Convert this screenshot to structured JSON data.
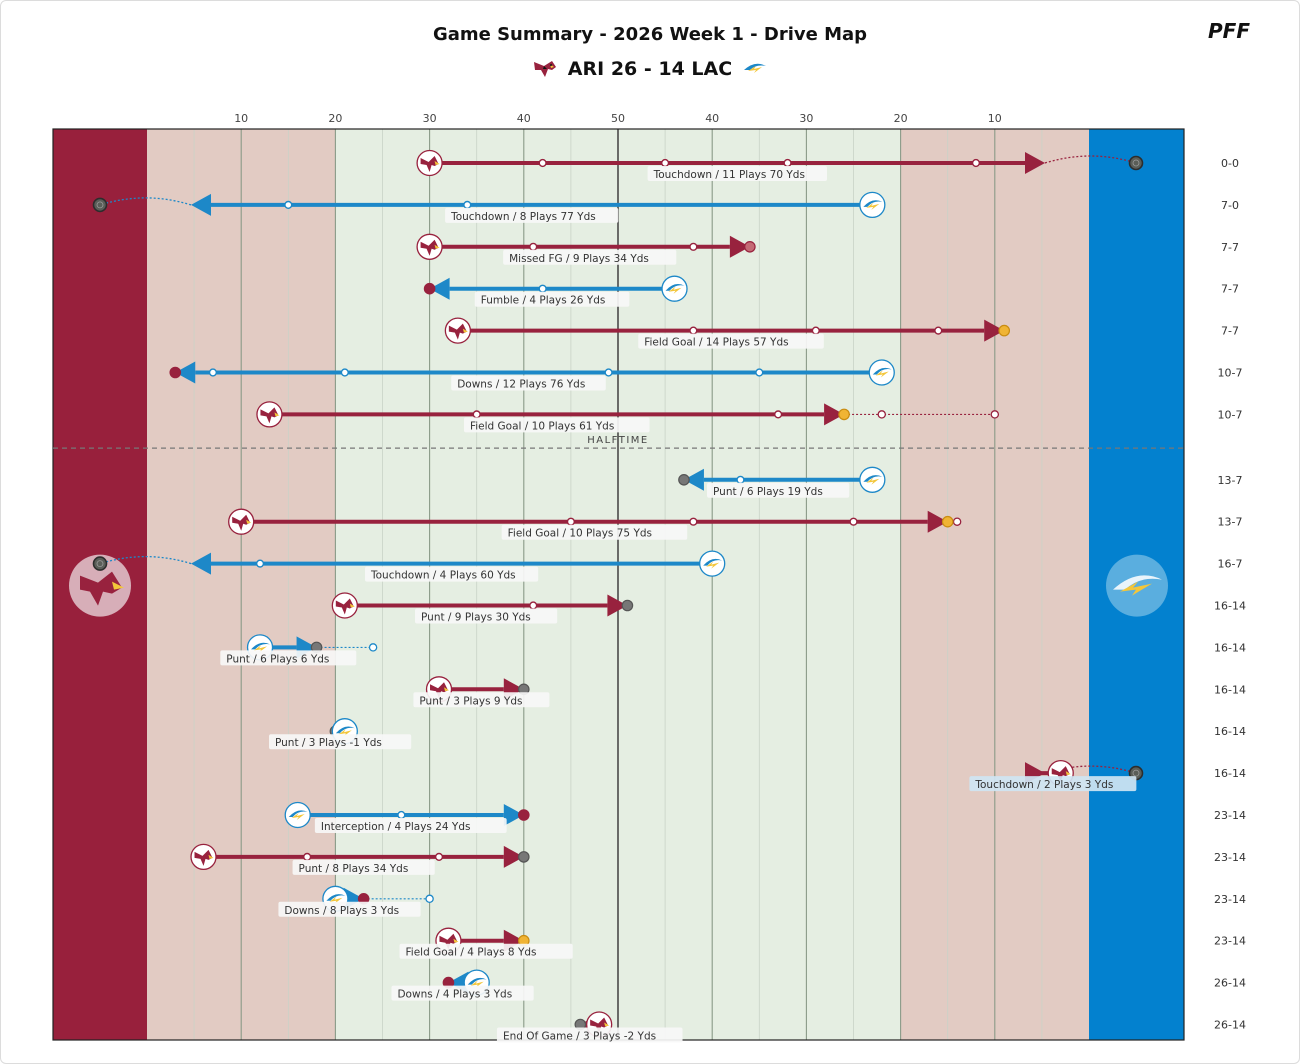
{
  "header": {
    "title": "Game Summary - 2026 Week 1 - Drive Map",
    "away_abbr": "ARI",
    "away_score": "26",
    "separator": "-",
    "home_score": "14",
    "home_abbr": "LAC",
    "score_text": "ARI 26 - 14 LAC",
    "brand": "PFF"
  },
  "colors": {
    "ari": "#98223e",
    "lac": "#1d88c8",
    "ari_endzone": "#98203c",
    "lac_endzone": "#0381cf",
    "redzone": "#e2cbc3",
    "midfield": "#e5eee2",
    "fg_dot": "#f0b434",
    "td_dot": "#5a5e58",
    "punt_dot": "#777777"
  },
  "halftime_label": "HALFTIME",
  "yard_ticks": [
    "10",
    "20",
    "30",
    "40",
    "50",
    "40",
    "30",
    "20",
    "10"
  ],
  "drives": [
    {
      "team": "ARI",
      "start": 30,
      "end": 95,
      "pts": [
        42,
        55,
        68,
        88
      ],
      "label": "Touchdown / 11 Plays 70 Yds",
      "score": "0-0",
      "end_type": "TD",
      "ext_to": 100
    },
    {
      "team": "LAC",
      "start": 77,
      "end": 0,
      "pts": [
        34,
        15
      ],
      "label": "Touchdown / 8 Plays 77 Yds",
      "score": "7-0",
      "end_type": "TD",
      "ext_to": 0
    },
    {
      "team": "ARI",
      "start": 30,
      "end": 64,
      "pts": [
        41,
        58
      ],
      "label": "Missed FG / 9 Plays 34 Yds",
      "score": "7-7",
      "end_type": "MISS"
    },
    {
      "team": "LAC",
      "start": 56,
      "end": 30,
      "pts": [
        42
      ],
      "label": "Fumble / 4 Plays 26 Yds",
      "score": "7-7",
      "end_type": "TO"
    },
    {
      "team": "ARI",
      "start": 33,
      "end": 91,
      "pts": [
        58,
        71,
        84
      ],
      "label": "Field Goal / 14 Plays 57 Yds",
      "score": "7-7",
      "end_type": "FG"
    },
    {
      "team": "LAC",
      "start": 78,
      "end": 3,
      "pts": [
        7,
        21,
        49,
        65
      ],
      "label": "Downs / 12 Plays 76 Yds",
      "score": "10-7",
      "end_type": "TO"
    },
    {
      "team": "ARI",
      "start": 13,
      "end": 74,
      "pts": [
        35,
        67
      ],
      "label": "Field Goal / 10 Plays 61 Yds",
      "score": "10-7",
      "end_type": "FG",
      "penalty": [
        74,
        90
      ],
      "penalty_pts": [
        78
      ]
    },
    {
      "team": "LAC",
      "start": 77,
      "end": 57,
      "pts": [
        63
      ],
      "label": "Punt / 6 Plays 19 Yds",
      "score": "13-7",
      "end_type": "PUNT",
      "halftime_after": true
    },
    {
      "team": "ARI",
      "start": 10,
      "end": 85,
      "pts": [
        45,
        58,
        75
      ],
      "label": "Field Goal / 10 Plays 75 Yds",
      "score": "13-7",
      "end_type": "FG",
      "penalty": [
        85,
        86
      ]
    },
    {
      "team": "LAC",
      "start": 60,
      "end": 0,
      "pts": [
        12
      ],
      "label": "Touchdown / 4 Plays 60 Yds",
      "score": "16-7",
      "end_type": "TD",
      "ext_to": 0
    },
    {
      "team": "ARI",
      "start": 21,
      "end": 51,
      "pts": [
        41
      ],
      "label": "Punt / 9 Plays 30 Yds",
      "score": "16-14",
      "end_type": "PUNT"
    },
    {
      "team": "LAC",
      "start": 12,
      "end": 18,
      "pts": [],
      "label": "Punt / 6 Plays 6 Yds",
      "score": "16-14",
      "end_type": "PUNT",
      "penalty": [
        18,
        24
      ]
    },
    {
      "team": "ARI",
      "start": 31,
      "end": 40,
      "pts": [],
      "label": "Punt / 3 Plays 9 Yds",
      "score": "16-14",
      "end_type": "PUNT"
    },
    {
      "team": "LAC",
      "start": 21,
      "end": 20,
      "pts": [],
      "label": "Punt / 3 Plays -1 Yds",
      "score": "16-14",
      "end_type": "PUNT"
    },
    {
      "team": "ARI",
      "start": 97,
      "end": 100,
      "pts": [],
      "label": "Touchdown / 2 Plays 3 Yds",
      "score": "16-14",
      "end_type": "TD",
      "ext_to": 100
    },
    {
      "team": "LAC",
      "start": 16,
      "end": 40,
      "pts": [
        27
      ],
      "label": "Interception / 4 Plays 24 Yds",
      "score": "23-14",
      "end_type": "TO"
    },
    {
      "team": "ARI",
      "start": 6,
      "end": 40,
      "pts": [
        17,
        31
      ],
      "label": "Punt / 8 Plays 34 Yds",
      "score": "23-14",
      "end_type": "PUNT"
    },
    {
      "team": "LAC",
      "start": 20,
      "end": 23,
      "pts": [],
      "label": "Downs / 8 Plays 3 Yds",
      "score": "23-14",
      "end_type": "TO",
      "penalty": [
        23,
        30
      ]
    },
    {
      "team": "ARI",
      "start": 32,
      "end": 40,
      "pts": [],
      "label": "Field Goal / 4 Plays 8 Yds",
      "score": "23-14",
      "end_type": "FG"
    },
    {
      "team": "LAC",
      "start": 35,
      "end": 32,
      "pts": [],
      "label": "Downs / 4 Plays 3 Yds",
      "score": "26-14",
      "end_type": "TO"
    },
    {
      "team": "ARI",
      "start": 48,
      "end": 46,
      "pts": [],
      "label": "End Of Game / 3 Plays -2 Yds",
      "score": "26-14",
      "end_type": "END"
    }
  ]
}
